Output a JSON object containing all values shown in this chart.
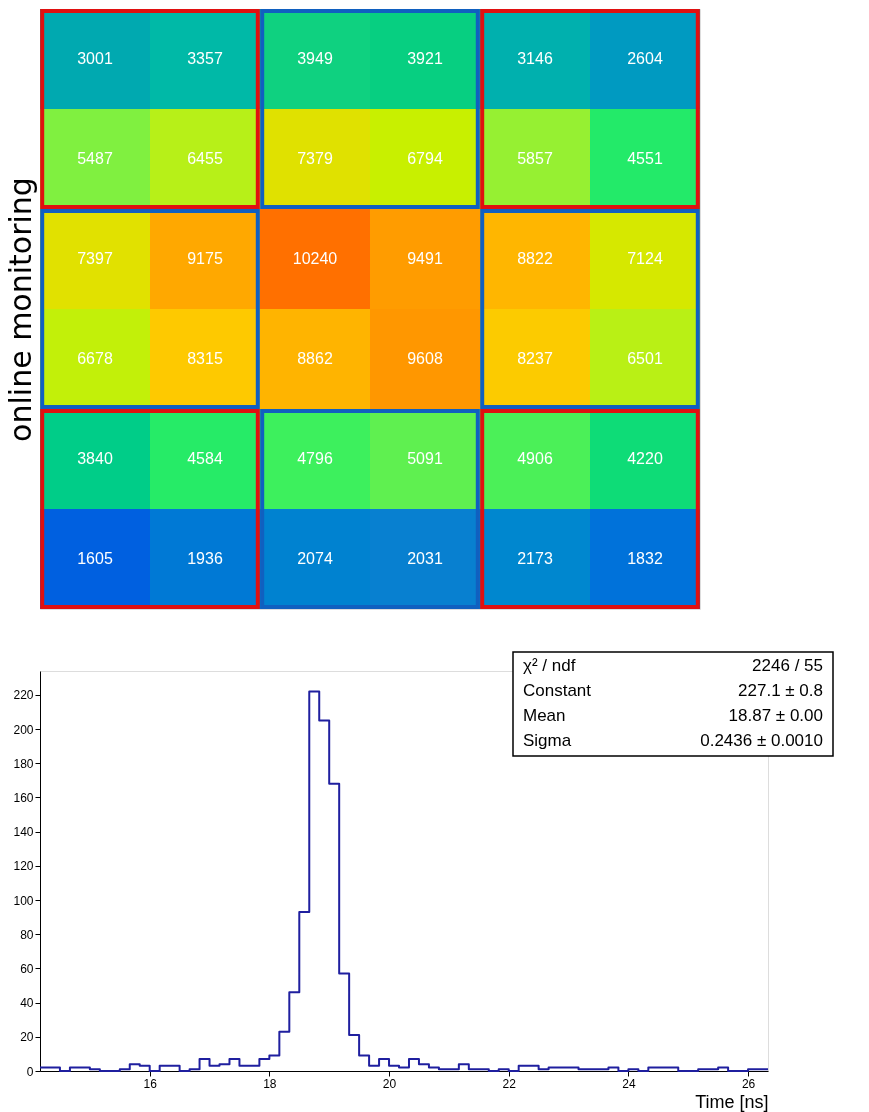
{
  "chart_data": [
    {
      "type": "heatmap",
      "ylabel": "online monitoring",
      "tick_labels": false,
      "data_labels": true,
      "categories": [
        null,
        null,
        null,
        null,
        null,
        null
      ],
      "y_categories": [
        null,
        null,
        null,
        null,
        null,
        null
      ],
      "cells": [
        [
          3001,
          3357,
          3949,
          3921,
          3146,
          2604
        ],
        [
          5487,
          6455,
          7379,
          6794,
          5857,
          4551
        ],
        [
          7397,
          9175,
          10240,
          9491,
          8822,
          7124
        ],
        [
          6678,
          8315,
          8862,
          9608,
          8237,
          6501
        ],
        [
          3840,
          4584,
          4796,
          5091,
          4906,
          4220
        ],
        [
          1605,
          1936,
          2074,
          2031,
          2173,
          1832
        ]
      ]
    },
    {
      "type": "histogram",
      "xlabel": "Time [ns]",
      "color": "#1f1f9f",
      "bins": [
        14.1667,
        14.3333,
        14.5,
        14.6667,
        14.8333,
        15.0,
        15.1667,
        15.3333,
        15.5,
        15.6667,
        15.8333,
        16.0,
        16.1667,
        16.3333,
        16.5,
        16.6667,
        16.8333,
        17.0,
        17.1667,
        17.3333,
        17.5,
        17.6667,
        17.8333,
        18.0,
        18.1667,
        18.3333,
        18.5,
        18.6667,
        18.8333,
        19.0,
        19.1667,
        19.3333,
        19.5,
        19.6667,
        19.8333,
        20.0,
        20.1667,
        20.3333,
        20.5,
        20.6667,
        20.8333,
        21.0,
        21.1667,
        21.3333,
        21.5,
        21.6667,
        21.8333,
        22.0,
        22.1667,
        22.3333,
        22.5,
        22.6667,
        22.8333,
        23.0,
        23.1667,
        23.3333,
        23.5,
        23.6667,
        23.8333,
        24.0,
        24.1667,
        24.3333,
        24.5,
        24.6667,
        24.8333,
        25.0,
        25.1667,
        25.3333,
        25.5,
        25.6667,
        25.8333,
        26.0,
        26.1667,
        26.3333
      ],
      "values": [
        2,
        2,
        0,
        2,
        2,
        1,
        0,
        0,
        1,
        4,
        3,
        0,
        3,
        3,
        0,
        1,
        7,
        3,
        4,
        7,
        3,
        3,
        7,
        9,
        23,
        46,
        93,
        222,
        205,
        168,
        57,
        21,
        9,
        3,
        7,
        3,
        2,
        7,
        4,
        2,
        1,
        1,
        4,
        1,
        1,
        0,
        1,
        0,
        3,
        3,
        1,
        2,
        2,
        2,
        1,
        1,
        1,
        2,
        0,
        1,
        0,
        2,
        2,
        2,
        0,
        0,
        1,
        1,
        2,
        0,
        0,
        1,
        1
      ],
      "xlim": [
        14.1667,
        26.3333
      ],
      "ylim": [
        0,
        234
      ],
      "xticks": [
        16,
        18,
        20,
        22,
        24,
        26
      ],
      "yticks": [
        0,
        20,
        40,
        60,
        80,
        100,
        120,
        140,
        160,
        180,
        200,
        220
      ],
      "annotations": [
        "χ² / ndf",
        "2246 / 55",
        "Constant",
        "227.1 ± 0.8",
        "Mean",
        "18.87 ± 0.00",
        "Sigma",
        "0.2436 ± 0.0010"
      ]
    }
  ]
}
